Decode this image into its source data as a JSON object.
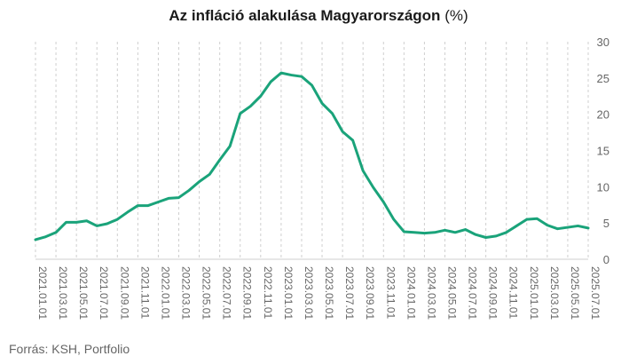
{
  "chart_data": {
    "type": "line",
    "title": "Az infláció alakulása Magyarországon",
    "title_unit": "(%)",
    "source": "Forrás: KSH, Portfolio",
    "ylim": [
      0,
      30
    ],
    "yticks": [
      0,
      5,
      10,
      15,
      20,
      25,
      30
    ],
    "y_axis_side": "right",
    "grid": "vertical-dashed",
    "line_color": "#1aa37a",
    "x_tick_labels": [
      "2021.01.01",
      "2021.03.01",
      "2021.05.01",
      "2021.07.01",
      "2021.09.01",
      "2021.11.01",
      "2022.01.01",
      "2022.03.01",
      "2022.05.01",
      "2022.07.01",
      "2022.09.01",
      "2022.11.01",
      "2023.01.01",
      "2023.03.01",
      "2023.05.01",
      "2023.07.01",
      "2023.09.01",
      "2023.11.01",
      "2024.01.01",
      "2024.03.01",
      "2024.05.01",
      "2024.07.01",
      "2024.09.01",
      "2024.11.01",
      "2025.01.01",
      "2025.03.01",
      "2025.05.01",
      "2025.07.01"
    ],
    "series": [
      {
        "x": [
          "2021.01",
          "2021.02",
          "2021.03",
          "2021.04",
          "2021.05",
          "2021.06",
          "2021.07",
          "2021.08",
          "2021.09",
          "2021.10",
          "2021.11",
          "2021.12",
          "2022.01",
          "2022.02",
          "2022.03",
          "2022.04",
          "2022.05",
          "2022.06",
          "2022.07",
          "2022.08",
          "2022.09",
          "2022.10",
          "2022.11",
          "2022.12",
          "2023.01",
          "2023.02",
          "2023.03",
          "2023.04",
          "2023.05",
          "2023.06",
          "2023.07",
          "2023.08",
          "2023.09",
          "2023.10",
          "2023.11",
          "2023.12",
          "2024.01",
          "2024.02",
          "2024.03",
          "2024.04",
          "2024.05",
          "2024.06",
          "2024.07",
          "2024.08",
          "2024.09",
          "2024.10",
          "2024.11",
          "2024.12",
          "2025.01",
          "2025.02",
          "2025.03",
          "2025.04",
          "2025.05",
          "2025.06",
          "2025.07"
        ],
        "values": [
          2.7,
          3.1,
          3.7,
          5.1,
          5.1,
          5.3,
          4.6,
          4.9,
          5.5,
          6.5,
          7.4,
          7.4,
          7.9,
          8.4,
          8.5,
          9.5,
          10.7,
          11.7,
          13.7,
          15.6,
          20.1,
          21.1,
          22.5,
          24.5,
          25.7,
          25.4,
          25.2,
          24.0,
          21.5,
          20.1,
          17.6,
          16.4,
          12.2,
          9.9,
          7.9,
          5.5,
          3.8,
          3.7,
          3.6,
          3.7,
          4.0,
          3.7,
          4.1,
          3.4,
          3.0,
          3.2,
          3.7,
          4.6,
          5.5,
          5.6,
          4.7,
          4.2,
          4.4,
          4.6,
          4.3
        ]
      }
    ]
  }
}
